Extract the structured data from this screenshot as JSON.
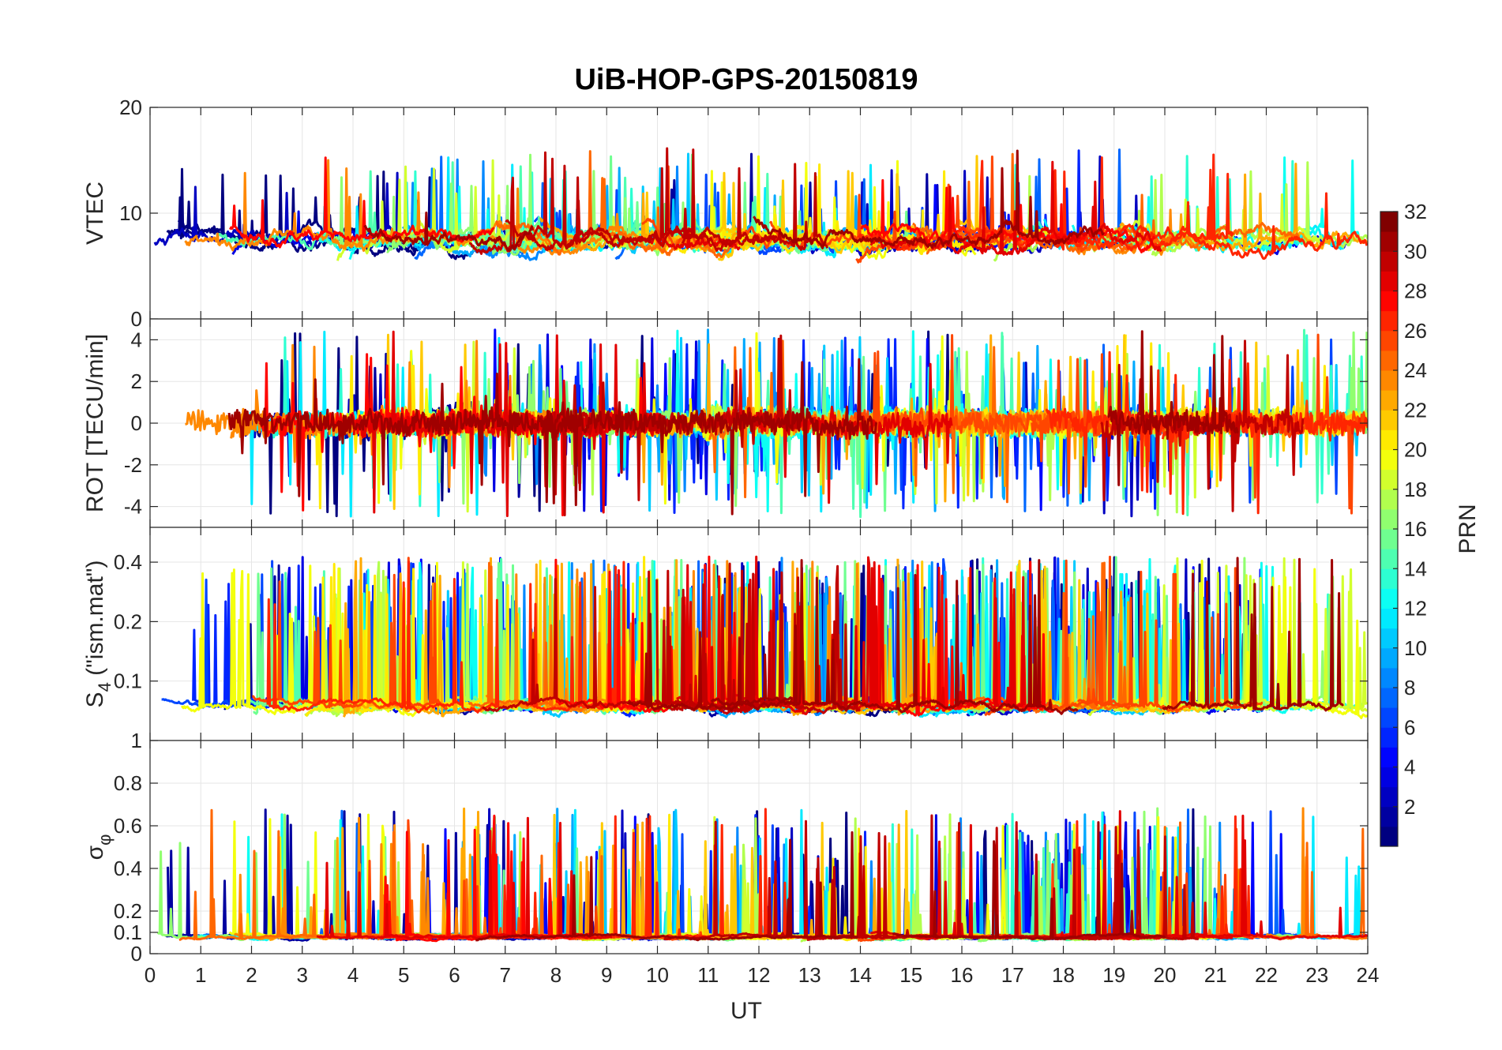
{
  "chart_data": {
    "type": "line",
    "title": "UiB-HOP-GPS-20150819",
    "xlabel": "UT",
    "xlim": [
      0,
      24
    ],
    "xticks": [
      "0",
      "1",
      "2",
      "3",
      "4",
      "5",
      "6",
      "7",
      "8",
      "9",
      "10",
      "11",
      "12",
      "13",
      "14",
      "15",
      "16",
      "17",
      "18",
      "19",
      "20",
      "21",
      "22",
      "23",
      "24"
    ],
    "grid": true,
    "panels": [
      {
        "ylabel": "VTEC",
        "ylim": [
          0,
          20
        ],
        "yticks": [
          "0",
          "10",
          "20"
        ],
        "ytick_values": [
          0,
          10,
          20
        ],
        "baseline": 7.5,
        "spread": 2.2,
        "spike_prob": 0.02,
        "spike_max": 8,
        "signed": false
      },
      {
        "ylabel": "ROT [TECU/min]",
        "ylim": [
          -5,
          5
        ],
        "yticks": [
          "-4",
          "-2",
          "0",
          "2",
          "4"
        ],
        "ytick_values": [
          -4,
          -2,
          0,
          2,
          4
        ],
        "baseline": 0,
        "spread": 0.5,
        "spike_prob": 0.05,
        "spike_max": 4.5,
        "signed": true
      },
      {
        "ylabel": "S4 (\"ism.mat\")",
        "ylabel_main": "S",
        "ylabel_sub": "4",
        "ylabel_rest": " (\"ism.mat\")",
        "ylim": [
          0.05,
          0.6
        ],
        "yticks": [
          "0.1",
          "0.2",
          "0.4"
        ],
        "ytick_values": [
          0.1,
          0.2,
          0.4
        ],
        "log": true,
        "baseline": 0.075,
        "spread": 0.01,
        "spike_prob": 0.06,
        "spike_max": 0.35,
        "signed": false
      },
      {
        "ylabel": "σφ",
        "ylabel_main": "σ",
        "ylabel_sub": "φ",
        "ylim": [
          0,
          1
        ],
        "yticks": [
          "0",
          "0.1",
          "0.2",
          "0.4",
          "0.6",
          "0.8",
          "1"
        ],
        "ytick_values": [
          0,
          0.1,
          0.2,
          0.4,
          0.6,
          0.8,
          1
        ],
        "baseline": 0.08,
        "spread": 0.02,
        "spike_prob": 0.035,
        "spike_max": 0.6,
        "signed": false
      }
    ],
    "colorbar": {
      "label": "PRN",
      "min": 1,
      "max": 32,
      "ticks": [
        "2",
        "4",
        "6",
        "8",
        "10",
        "12",
        "14",
        "16",
        "18",
        "20",
        "22",
        "24",
        "26",
        "28",
        "30",
        "32"
      ],
      "tick_values": [
        2,
        4,
        6,
        8,
        10,
        12,
        14,
        16,
        18,
        20,
        22,
        24,
        26,
        28,
        30,
        32
      ],
      "colormap": "jet"
    },
    "series_count": 31
  }
}
